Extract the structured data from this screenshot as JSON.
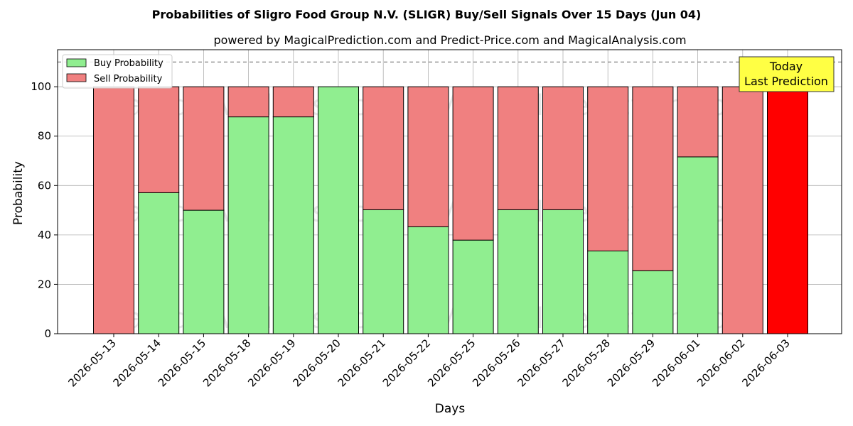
{
  "chart_data": {
    "type": "bar",
    "stacked": true,
    "title": "Probabilities of Sligro Food Group N.V. (SLIGR) Buy/Sell Signals Over 15 Days (Jun 04)",
    "subtitle": "powered by MagicalPrediction.com and Predict-Price.com and MagicalAnalysis.com",
    "xlabel": "Days",
    "ylabel": "Probability",
    "ylim": [
      0,
      115
    ],
    "yticks": [
      0,
      20,
      40,
      60,
      80,
      100
    ],
    "grid": true,
    "legend_position": "top-left",
    "reference_line": 110,
    "categories": [
      "2026-05-13",
      "2026-05-14",
      "2026-05-15",
      "2026-05-18",
      "2026-05-19",
      "2026-05-20",
      "2026-05-21",
      "2026-05-22",
      "2026-05-25",
      "2026-05-26",
      "2026-05-27",
      "2026-05-28",
      "2026-05-29",
      "2026-06-01",
      "2026-06-02",
      "2026-06-03"
    ],
    "series": [
      {
        "name": "Buy Probability",
        "color": "#90ee90",
        "values": [
          0,
          57.1,
          50.0,
          87.8,
          87.8,
          100,
          50.2,
          43.3,
          37.9,
          50.2,
          50.2,
          33.5,
          25.5,
          71.6,
          0,
          0
        ]
      },
      {
        "name": "Sell Probability",
        "color": "#f08080",
        "values": [
          100,
          42.9,
          50.0,
          12.2,
          12.2,
          0,
          49.8,
          56.7,
          62.1,
          49.8,
          49.8,
          66.5,
          74.5,
          28.4,
          100,
          100
        ]
      }
    ],
    "highlight": {
      "index": 15,
      "color": "#ff0000"
    },
    "annotation": {
      "line1": "Today",
      "line2": "Last Prediction",
      "color": "#ffff44"
    },
    "watermarks": [
      "MagicalAnalysis.com",
      "MagicalPrediction.com"
    ]
  }
}
